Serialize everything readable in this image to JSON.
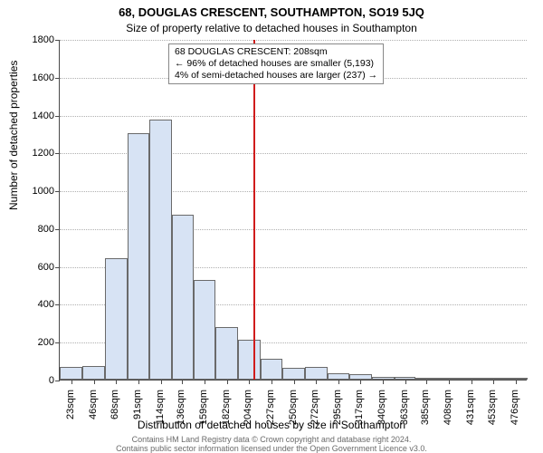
{
  "chart": {
    "type": "histogram",
    "title_main": "68, DOUGLAS CRESCENT, SOUTHAMPTON, SO19 5JQ",
    "title_sub": "Size of property relative to detached houses in Southampton",
    "title_main_fontsize": 13,
    "title_sub_fontsize": 12,
    "y_axis_label": "Number of detached properties",
    "x_axis_label": "Distribution of detached houses by size in Southampton",
    "axis_label_fontsize": 12,
    "tick_fontsize": 11,
    "background_color": "#ffffff",
    "grid_color": "#b0b0b0",
    "axis_color": "#4a4a4a",
    "bar_fill_color": "#d7e3f4",
    "bar_border_color": "#6a6a6a",
    "reference_line_color": "#d01c1c",
    "reference_line_x": 208,
    "annotation": {
      "line1": "68 DOUGLAS CRESCENT: 208sqm",
      "line2": "← 96% of detached houses are smaller (5,193)",
      "line3": "4% of semi-detached houses are larger (237) →",
      "fontsize": 10.5,
      "border_color": "#888888",
      "background_color": "#ffffff"
    },
    "x_ticks": [
      23,
      46,
      68,
      91,
      114,
      136,
      159,
      182,
      204,
      227,
      250,
      272,
      295,
      317,
      340,
      363,
      385,
      408,
      431,
      453,
      476
    ],
    "x_tick_unit": "sqm",
    "y_ticks": [
      0,
      200,
      400,
      600,
      800,
      1000,
      1200,
      1400,
      1600,
      1800
    ],
    "y_min": 0,
    "y_max": 1800,
    "x_min": 11,
    "x_max": 488,
    "bars": [
      {
        "x_start": 11,
        "x_end": 34,
        "value": 65
      },
      {
        "x_start": 34,
        "x_end": 57,
        "value": 70
      },
      {
        "x_start": 57,
        "x_end": 80,
        "value": 640
      },
      {
        "x_start": 80,
        "x_end": 102,
        "value": 1300
      },
      {
        "x_start": 102,
        "x_end": 125,
        "value": 1375
      },
      {
        "x_start": 125,
        "x_end": 148,
        "value": 870
      },
      {
        "x_start": 148,
        "x_end": 170,
        "value": 525
      },
      {
        "x_start": 170,
        "x_end": 193,
        "value": 280
      },
      {
        "x_start": 193,
        "x_end": 216,
        "value": 210
      },
      {
        "x_start": 216,
        "x_end": 238,
        "value": 110
      },
      {
        "x_start": 238,
        "x_end": 261,
        "value": 60
      },
      {
        "x_start": 261,
        "x_end": 284,
        "value": 65
      },
      {
        "x_start": 284,
        "x_end": 306,
        "value": 35
      },
      {
        "x_start": 306,
        "x_end": 329,
        "value": 30
      },
      {
        "x_start": 329,
        "x_end": 352,
        "value": 15
      },
      {
        "x_start": 352,
        "x_end": 374,
        "value": 15
      },
      {
        "x_start": 374,
        "x_end": 397,
        "value": 12
      },
      {
        "x_start": 397,
        "x_end": 420,
        "value": 3
      },
      {
        "x_start": 420,
        "x_end": 442,
        "value": 2
      },
      {
        "x_start": 442,
        "x_end": 465,
        "value": 2
      },
      {
        "x_start": 465,
        "x_end": 488,
        "value": 2
      }
    ],
    "footer_line1": "Contains HM Land Registry data © Crown copyright and database right 2024.",
    "footer_line2": "Contains public sector information licensed under the Open Government Licence v3.0.",
    "footer_fontsize": 9,
    "footer_color": "#6a6a6a"
  }
}
